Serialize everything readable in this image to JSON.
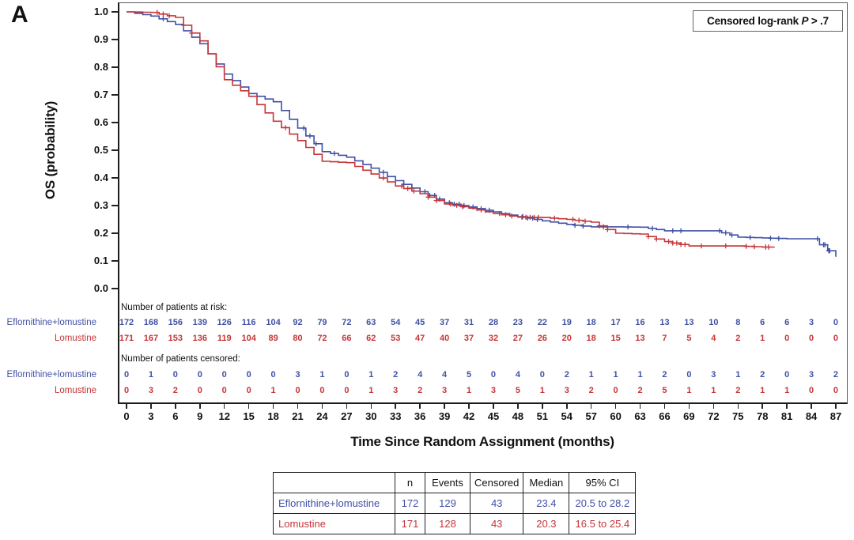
{
  "panel": {
    "label": "A"
  },
  "legend": {
    "prefix": "Censored log-rank ",
    "stat_symbol": "P",
    "suffix": " > .7"
  },
  "axes": {
    "y_label": "OS (probability)",
    "x_label": "Time Since Random Assignment (months)",
    "y_ticks": [
      "1.0",
      "0.9",
      "0.8",
      "0.7",
      "0.6",
      "0.5",
      "0.4",
      "0.3",
      "0.2",
      "0.1",
      "0.0"
    ],
    "x_ticks": [
      0,
      3,
      6,
      9,
      12,
      15,
      18,
      21,
      24,
      27,
      30,
      33,
      36,
      39,
      42,
      45,
      48,
      51,
      54,
      57,
      60,
      63,
      66,
      69,
      72,
      75,
      78,
      81,
      84,
      87
    ]
  },
  "groups": [
    {
      "name": "Eflornithine+lomustine",
      "color": "#4150a5"
    },
    {
      "name": "Lomustine",
      "color": "#c53538"
    }
  ],
  "risk_section": {
    "at_risk_header": "Number of patients at risk:",
    "censored_header": "Number of patients censored:",
    "months": [
      0,
      3,
      6,
      9,
      12,
      15,
      18,
      21,
      24,
      27,
      30,
      33,
      36,
      39,
      42,
      45,
      48,
      51,
      54,
      57,
      60,
      63,
      66,
      69,
      72,
      75,
      78,
      81,
      84,
      87
    ],
    "at_risk": [
      [
        172,
        168,
        156,
        139,
        126,
        116,
        104,
        92,
        79,
        72,
        63,
        54,
        45,
        37,
        31,
        28,
        23,
        22,
        19,
        18,
        17,
        16,
        13,
        13,
        10,
        8,
        6,
        6,
        3,
        0
      ],
      [
        171,
        167,
        153,
        136,
        119,
        104,
        89,
        80,
        72,
        66,
        62,
        53,
        47,
        40,
        37,
        32,
        27,
        26,
        20,
        18,
        15,
        13,
        7,
        5,
        4,
        2,
        1,
        0,
        0,
        0
      ]
    ],
    "censored": [
      [
        0,
        1,
        0,
        0,
        0,
        0,
        0,
        3,
        1,
        0,
        1,
        2,
        4,
        4,
        5,
        0,
        4,
        0,
        2,
        1,
        1,
        1,
        2,
        0,
        3,
        1,
        2,
        0,
        3,
        2
      ],
      [
        0,
        3,
        2,
        0,
        0,
        0,
        1,
        0,
        0,
        0,
        1,
        3,
        2,
        3,
        1,
        3,
        5,
        1,
        3,
        2,
        0,
        2,
        5,
        1,
        1,
        2,
        1,
        1,
        0,
        0
      ]
    ]
  },
  "summary_table": {
    "headers": [
      "",
      "n",
      "Events",
      "Censored",
      "Median",
      "95% CI"
    ],
    "rows": [
      {
        "label": "Eflornithine+lomustine",
        "n": "172",
        "events": "129",
        "censored": "43",
        "median": "23.4",
        "ci": "20.5 to 28.2"
      },
      {
        "label": "Lomustine",
        "n": "171",
        "events": "128",
        "censored": "43",
        "median": "20.3",
        "ci": "16.5 to 25.4"
      }
    ]
  },
  "chart_data": {
    "type": "line",
    "subtype": "kaplan-meier-step",
    "title": "",
    "xlabel": "Time Since Random Assignment (months)",
    "ylabel": "OS (probability)",
    "xlim": [
      0,
      87
    ],
    "ylim": [
      0.0,
      1.0
    ],
    "grid": false,
    "annotation": "Censored log-rank P > .7",
    "legend_position": "top-right-box",
    "x": [
      0,
      3,
      6,
      9,
      12,
      15,
      18,
      21,
      24,
      27,
      30,
      33,
      36,
      39,
      42,
      45,
      48,
      51,
      54,
      57,
      60,
      63,
      66,
      69,
      72,
      75,
      78,
      81,
      84,
      87
    ],
    "series": [
      {
        "name": "Eflornithine+lomustine",
        "color": "#4150a5",
        "end_month": 87,
        "os_probability": [
          1.0,
          0.985,
          0.955,
          0.885,
          0.775,
          0.705,
          0.675,
          0.58,
          0.495,
          0.475,
          0.435,
          0.39,
          0.35,
          0.31,
          0.295,
          0.277,
          0.26,
          0.245,
          0.232,
          0.223,
          0.223,
          0.222,
          0.209,
          0.209,
          0.209,
          0.186,
          0.183,
          0.18,
          0.18,
          0.115
        ]
      },
      {
        "name": "Lomustine",
        "color": "#c53538",
        "end_month": 79.5,
        "os_probability": [
          1.0,
          0.998,
          0.98,
          0.895,
          0.755,
          0.695,
          0.605,
          0.535,
          0.46,
          0.455,
          0.414,
          0.371,
          0.343,
          0.306,
          0.291,
          0.271,
          0.258,
          0.257,
          0.25,
          0.24,
          0.2,
          0.197,
          0.17,
          0.154,
          0.154,
          0.154,
          0.15,
          null,
          null,
          null
        ]
      }
    ]
  }
}
